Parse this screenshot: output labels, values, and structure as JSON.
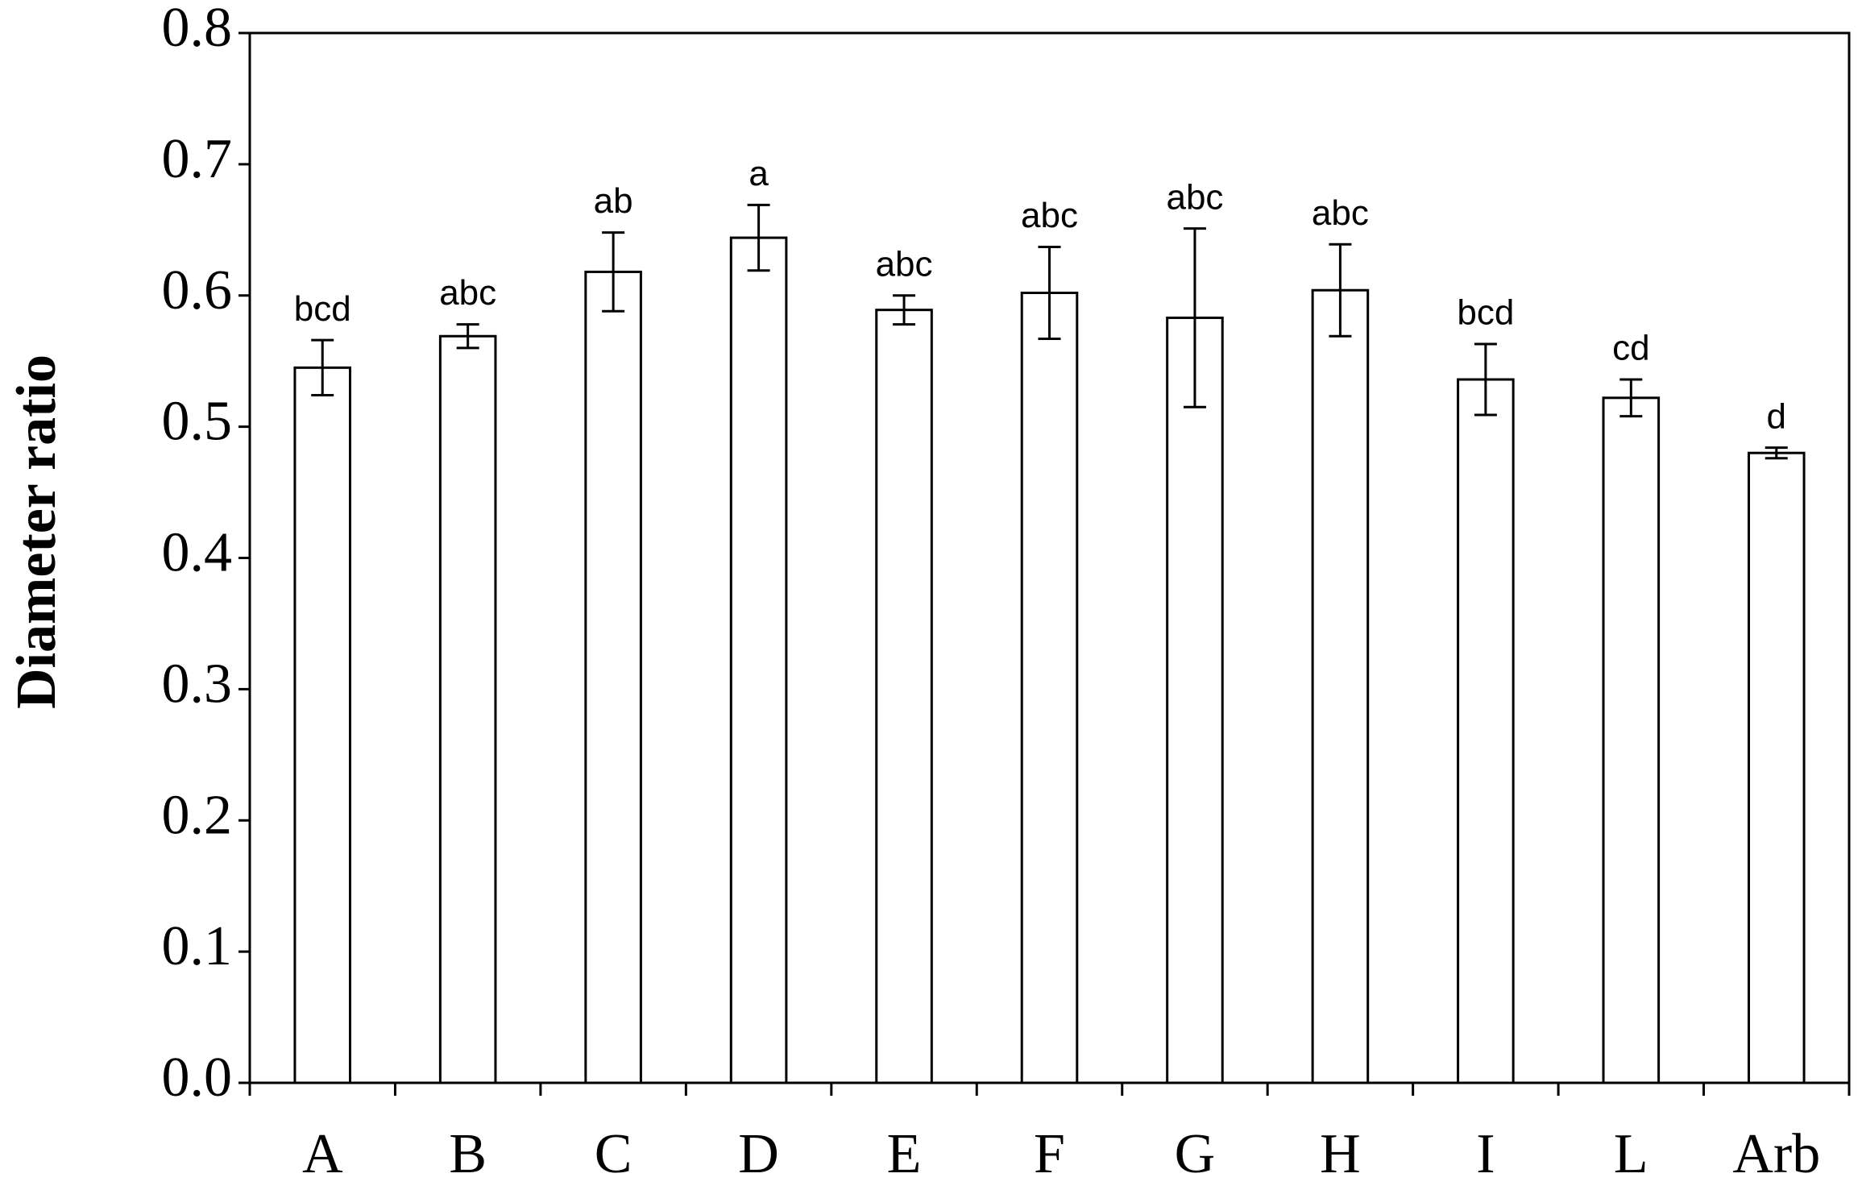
{
  "chart_data": {
    "type": "bar",
    "y_label": "Diameter ratio",
    "categories": [
      "A",
      "B",
      "C",
      "D",
      "E",
      "F",
      "G",
      "H",
      "I",
      "L",
      "Arb"
    ],
    "values": [
      0.545,
      0.569,
      0.618,
      0.644,
      0.589,
      0.602,
      0.583,
      0.604,
      0.536,
      0.522,
      0.48
    ],
    "errors": [
      0.021,
      0.009,
      0.03,
      0.025,
      0.011,
      0.035,
      0.068,
      0.035,
      0.027,
      0.014,
      0.004
    ],
    "annotations": [
      "bcd",
      "abc",
      "ab",
      "a",
      "abc",
      "abc",
      "abc",
      "abc",
      "bcd",
      "cd",
      "d"
    ],
    "color": "#ffffff",
    "ylim": [
      0,
      0.8
    ],
    "yticks": [
      {
        "value": 0,
        "label": "0.0"
      },
      0.1,
      0.2,
      0.3,
      0.4,
      0.5,
      0.6,
      0.7,
      0.8
    ],
    "grid": false
  }
}
